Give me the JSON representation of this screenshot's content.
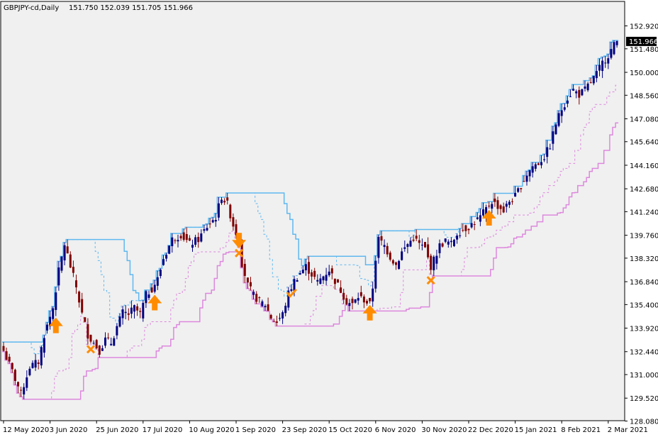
{
  "header": {
    "symbol": "GBPJPY-cd,Daily",
    "ohlc": "151.750 152.039 151.705 151.966"
  },
  "colors": {
    "background": "#ffffff",
    "plot_background": "#f0f0f0",
    "bull_candle": "#000080",
    "bear_candle": "#800000",
    "upper_channel": "#5fb8ef",
    "lower_channel": "#dd88dd",
    "signal": "#ff8c00",
    "axis": "#000000"
  },
  "chart_data": {
    "type": "candlestick",
    "ylim": [
      128.08,
      153.5
    ],
    "y_ticks": [
      "152.920",
      "151.480",
      "150.000",
      "148.560",
      "147.080",
      "145.640",
      "144.160",
      "142.680",
      "141.240",
      "139.760",
      "138.320",
      "136.840",
      "135.400",
      "133.920",
      "132.440",
      "131.000",
      "129.520",
      "128.080"
    ],
    "y_tick_values": [
      152.92,
      151.48,
      150.0,
      148.56,
      147.08,
      145.64,
      144.16,
      142.68,
      141.24,
      139.76,
      138.32,
      136.84,
      135.4,
      133.92,
      132.44,
      131.0,
      129.52,
      128.08
    ],
    "x_tick_labels": [
      "12 May 2020",
      "3 Jun 2020",
      "25 Jun 2020",
      "17 Jul 2020",
      "10 Aug 2020",
      "1 Sep 2020",
      "23 Sep 2020",
      "15 Oct 2020",
      "6 Nov 2020",
      "30 Nov 2020",
      "22 Dec 2020",
      "15 Jan 2021",
      "8 Feb 2021",
      "2 Mar 2021"
    ],
    "x_tick_index": [
      0,
      16,
      32,
      48,
      64,
      80,
      96,
      112,
      128,
      144,
      160,
      176,
      192,
      208
    ],
    "last_price": "151.966",
    "last_price_value": 151.966,
    "anchors": [
      [
        0,
        132.5
      ],
      [
        3,
        131.2
      ],
      [
        6,
        129.8
      ],
      [
        9,
        131.5
      ],
      [
        12,
        131.8
      ],
      [
        14,
        133.5
      ],
      [
        17,
        135.2
      ],
      [
        19,
        137.5
      ],
      [
        21,
        139.2
      ],
      [
        23,
        137.8
      ],
      [
        25,
        136.5
      ],
      [
        27,
        134.8
      ],
      [
        29,
        133.5
      ],
      [
        31,
        133.0
      ],
      [
        33,
        132.5
      ],
      [
        35,
        133.2
      ],
      [
        37,
        133.0
      ],
      [
        39,
        134.0
      ],
      [
        41,
        134.9
      ],
      [
        43,
        134.8
      ],
      [
        45,
        135.2
      ],
      [
        47,
        134.8
      ],
      [
        49,
        136.0
      ],
      [
        51,
        136.4
      ],
      [
        53,
        137.0
      ],
      [
        55,
        138.3
      ],
      [
        58,
        139.5
      ],
      [
        61,
        139.8
      ],
      [
        64,
        139.2
      ],
      [
        67,
        139.5
      ],
      [
        70,
        140.3
      ],
      [
        73,
        140.9
      ],
      [
        75,
        142.2
      ],
      [
        77,
        141.7
      ],
      [
        79,
        140.4
      ],
      [
        81,
        139.4
      ],
      [
        82,
        138.0
      ],
      [
        84,
        136.6
      ],
      [
        86,
        136.0
      ],
      [
        88,
        135.6
      ],
      [
        90,
        135.4
      ],
      [
        92,
        134.6
      ],
      [
        94,
        134.3
      ],
      [
        96,
        134.8
      ],
      [
        98,
        136.1
      ],
      [
        100,
        136.9
      ],
      [
        102,
        137.4
      ],
      [
        104,
        137.8
      ],
      [
        106,
        137.3
      ],
      [
        108,
        136.8
      ],
      [
        110,
        137.2
      ],
      [
        112,
        137.6
      ],
      [
        114,
        136.9
      ],
      [
        116,
        136.3
      ],
      [
        118,
        135.6
      ],
      [
        120,
        135.4
      ],
      [
        122,
        135.9
      ],
      [
        124,
        135.7
      ],
      [
        126,
        135.4
      ],
      [
        127,
        136.5
      ],
      [
        128,
        138.3
      ],
      [
        129,
        139.5
      ],
      [
        131,
        139.1
      ],
      [
        133,
        138.4
      ],
      [
        135,
        137.9
      ],
      [
        137,
        138.7
      ],
      [
        139,
        139.2
      ],
      [
        141,
        139.6
      ],
      [
        143,
        139.2
      ],
      [
        145,
        138.9
      ],
      [
        146,
        138.3
      ],
      [
        147,
        137.8
      ],
      [
        148,
        138.2
      ],
      [
        150,
        139.1
      ],
      [
        152,
        139.4
      ],
      [
        154,
        139.2
      ],
      [
        156,
        139.9
      ],
      [
        158,
        140.1
      ],
      [
        160,
        140.3
      ],
      [
        162,
        140.6
      ],
      [
        164,
        140.9
      ],
      [
        166,
        141.4
      ],
      [
        168,
        141.9
      ],
      [
        170,
        141.6
      ],
      [
        172,
        141.3
      ],
      [
        174,
        141.9
      ],
      [
        176,
        142.2
      ],
      [
        178,
        142.9
      ],
      [
        180,
        143.6
      ],
      [
        182,
        144.1
      ],
      [
        184,
        144.3
      ],
      [
        186,
        144.7
      ],
      [
        188,
        145.4
      ],
      [
        190,
        146.8
      ],
      [
        192,
        147.7
      ],
      [
        194,
        148.4
      ],
      [
        196,
        148.9
      ],
      [
        198,
        148.6
      ],
      [
        200,
        148.9
      ],
      [
        202,
        149.4
      ],
      [
        204,
        149.9
      ],
      [
        206,
        150.6
      ],
      [
        208,
        151.1
      ],
      [
        210,
        151.7
      ],
      [
        211,
        151.97
      ]
    ],
    "signals": [
      {
        "type": "up",
        "i": 18
      },
      {
        "type": "x",
        "i": 30
      },
      {
        "type": "up",
        "i": 52
      },
      {
        "type": "down",
        "i": 81
      },
      {
        "type": "x",
        "i": 81
      },
      {
        "type": "check",
        "i": 99
      },
      {
        "type": "up",
        "i": 126
      },
      {
        "type": "x",
        "i": 147
      },
      {
        "type": "up",
        "i": 167
      }
    ]
  }
}
